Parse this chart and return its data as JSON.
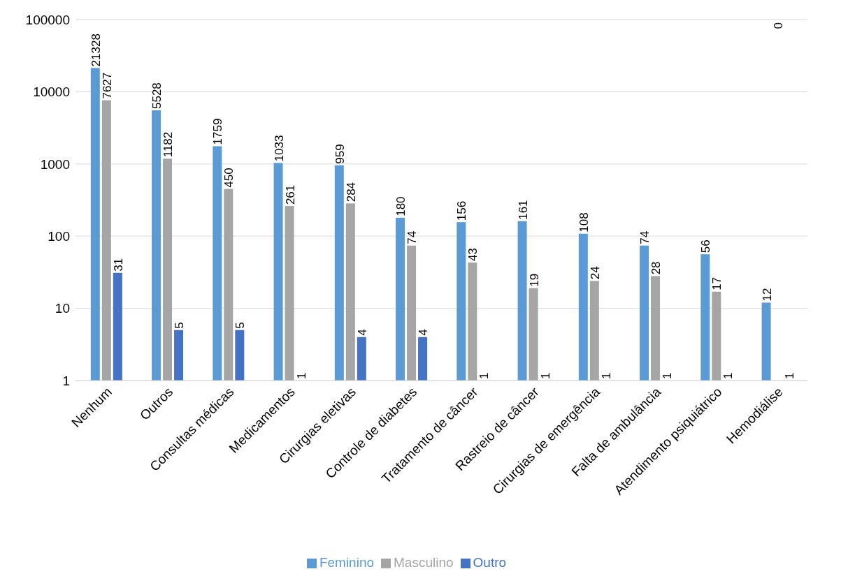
{
  "chart_data": {
    "type": "bar",
    "log": "y",
    "categories": [
      "Nenhum",
      "Outros",
      "Consultas médicas",
      "Medicamentos",
      "Cirurgias eletivas",
      "Controle de diabetes",
      "Tratamento de câncer",
      "Rastreio de câncer",
      "Cirurgias de emergência",
      "Falta de ambulância",
      "Atendimento psiquiátrico",
      "Hemodiálise"
    ],
    "series": [
      {
        "name": "Feminino",
        "color": "#5b9bd5",
        "values": [
          21328,
          5528,
          1759,
          1033,
          959,
          180,
          156,
          161,
          108,
          74,
          56,
          12
        ]
      },
      {
        "name": "Masculino",
        "color": "#a5a5a5",
        "values": [
          7627,
          1182,
          450,
          261,
          284,
          74,
          43,
          19,
          24,
          28,
          17,
          null
        ],
        "value_labels": [
          "7627",
          "1182",
          "450",
          "261",
          "284",
          "74",
          "43",
          "19",
          "24",
          "28",
          "17",
          "0"
        ]
      },
      {
        "name": "Outro",
        "color": "#4472c4",
        "values": [
          31,
          5,
          5,
          1,
          4,
          4,
          1,
          1,
          1,
          1,
          1,
          1
        ]
      }
    ],
    "data_labels": true,
    "ylim": [
      1,
      100000
    ],
    "yticks": [
      1,
      10,
      100,
      1000,
      10000,
      100000
    ],
    "grid": "y",
    "legend": "bottom"
  }
}
